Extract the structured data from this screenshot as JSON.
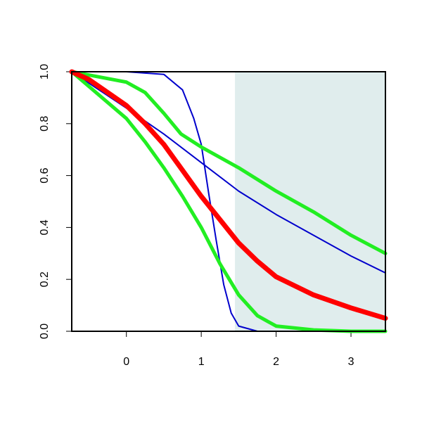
{
  "chart_data": {
    "type": "line",
    "xlim": [
      -0.73,
      3.46
    ],
    "ylim": [
      0,
      1
    ],
    "xticks": [
      0,
      1,
      2,
      3
    ],
    "yticks": [
      {
        "value": 0,
        "label": "0.0"
      },
      0.2,
      0.4,
      0.6,
      0.8,
      {
        "value": 1,
        "label": "1.0"
      }
    ],
    "shade": {
      "from": 1.45,
      "to": 3.46,
      "color": "#e0eded"
    },
    "series": [
      {
        "color": "#0000cc",
        "width": 2,
        "x": [
          -0.73,
          0,
          0.5,
          0.75,
          0.9,
          1,
          1.1,
          1.2,
          1.3,
          1.4,
          1.5,
          1.75,
          2,
          3.46
        ],
        "values": [
          1,
          1,
          0.99,
          0.93,
          0.82,
          0.72,
          0.53,
          0.35,
          0.18,
          0.07,
          0.02,
          0,
          0,
          0
        ]
      },
      {
        "color": "#0000cc",
        "width": 2,
        "x": [
          -0.73,
          0,
          0.2,
          0.5,
          1,
          1.5,
          2,
          2.5,
          3,
          3.46
        ],
        "values": [
          1,
          0.86,
          0.82,
          0.76,
          0.65,
          0.54,
          0.45,
          0.37,
          0.29,
          0.225
        ]
      },
      {
        "color": "#22ee22",
        "width": 5,
        "x": [
          -0.73,
          0,
          0.25,
          0.5,
          0.73,
          1,
          1.5,
          2,
          2.5,
          3,
          3.46
        ],
        "values": [
          1,
          0.96,
          0.92,
          0.84,
          0.76,
          0.71,
          0.63,
          0.54,
          0.46,
          0.37,
          0.3
        ]
      },
      {
        "color": "#22ee22",
        "width": 5,
        "x": [
          -0.73,
          0,
          0.25,
          0.5,
          0.75,
          1,
          1.25,
          1.5,
          1.75,
          2,
          2.5,
          3,
          3.46
        ],
        "values": [
          1,
          0.82,
          0.73,
          0.63,
          0.52,
          0.4,
          0.26,
          0.14,
          0.06,
          0.02,
          0.005,
          0,
          0
        ]
      },
      {
        "color": "#ff0000",
        "width": 7,
        "x": [
          -0.73,
          -0.5,
          0,
          0.25,
          0.5,
          0.75,
          1,
          1.25,
          1.5,
          1.75,
          2,
          2.5,
          3,
          3.46
        ],
        "values": [
          1,
          0.97,
          0.87,
          0.8,
          0.72,
          0.62,
          0.52,
          0.43,
          0.34,
          0.27,
          0.21,
          0.14,
          0.09,
          0.05
        ]
      }
    ]
  }
}
